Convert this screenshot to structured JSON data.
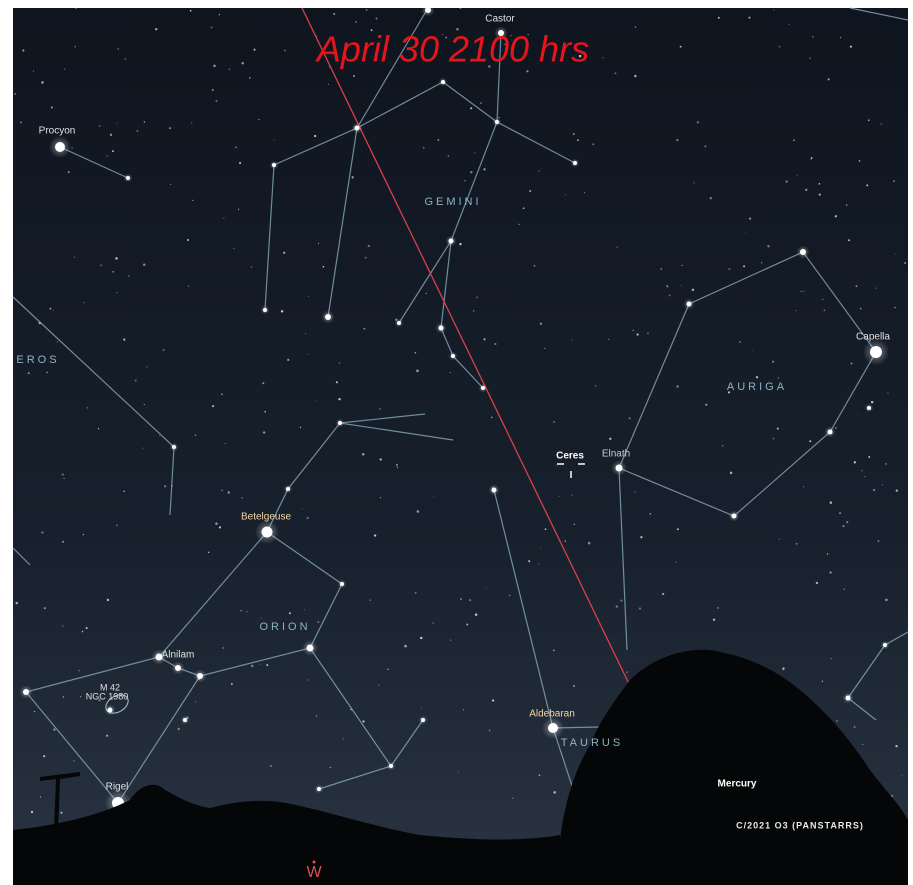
{
  "title": "April 30 2100 hrs",
  "labels": [
    {
      "text": "Castor"
    },
    {
      "text": "Procyon"
    },
    {
      "text": "GEMINI"
    },
    {
      "text": "EROS"
    },
    {
      "text": "Capella"
    },
    {
      "text": "AURIGA"
    },
    {
      "text": "Ceres"
    },
    {
      "text": "Elnath"
    },
    {
      "text": "Betelgeuse"
    },
    {
      "text": "ORION"
    },
    {
      "text": "Alnilam"
    },
    {
      "text": "M 42"
    },
    {
      "text": "NGC 1980"
    },
    {
      "text": "Aldebaran"
    },
    {
      "text": "TAURUS"
    },
    {
      "text": "Rigel"
    },
    {
      "text": "Mercury"
    },
    {
      "text": "C/2021 O3 (PANSTARRS)"
    },
    {
      "text": "W"
    }
  ]
}
